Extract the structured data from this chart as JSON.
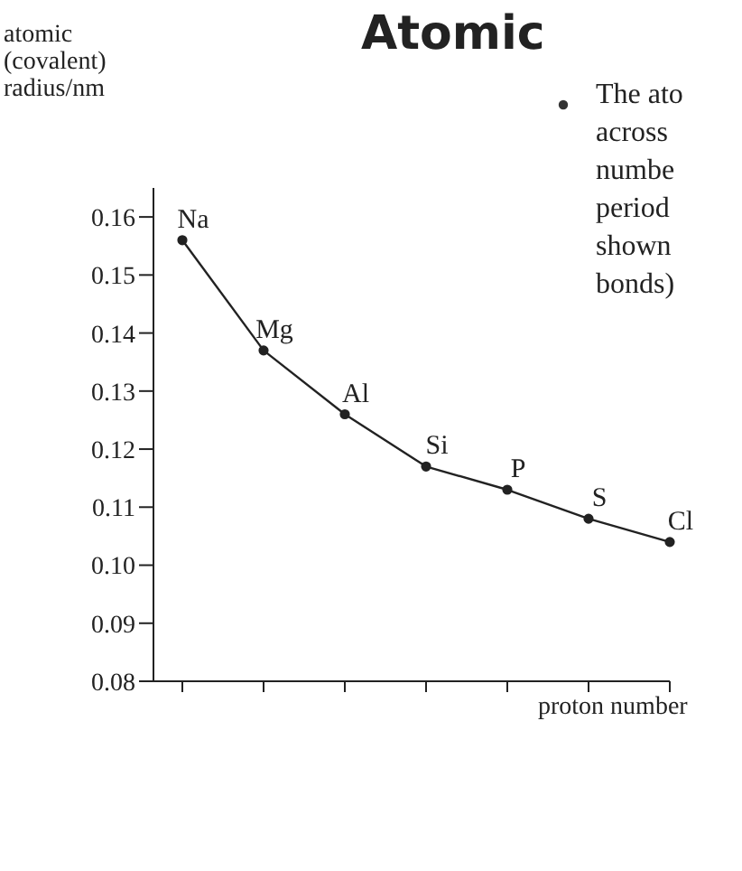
{
  "chart_data": {
    "type": "line",
    "title": "Atomic",
    "annotations": [
      "The ato",
      "across",
      "numbe",
      "period",
      "shown",
      "bonds)"
    ],
    "ylabel": "atomic (covalent) radius/nm",
    "xlabel": "proton number",
    "categories": [
      null,
      null,
      null,
      null,
      null,
      null,
      null
    ],
    "series": [
      {
        "color": "#222222",
        "values": [
          0.156,
          0.137,
          0.126,
          0.117,
          0.113,
          0.108,
          0.104
        ],
        "value_labels": [
          "Na",
          "Mg",
          "Al",
          "Si",
          "P",
          "S",
          "Cl"
        ]
      }
    ],
    "ylim": [
      0.08,
      0.165
    ],
    "yticks": [
      0.08,
      0.09,
      {
        "value": 0.1,
        "label": "0.10"
      },
      0.11,
      0.12,
      0.13,
      0.14,
      0.15,
      0.16
    ],
    "marker": "circle",
    "line_style": "solid",
    "grid": false
  }
}
